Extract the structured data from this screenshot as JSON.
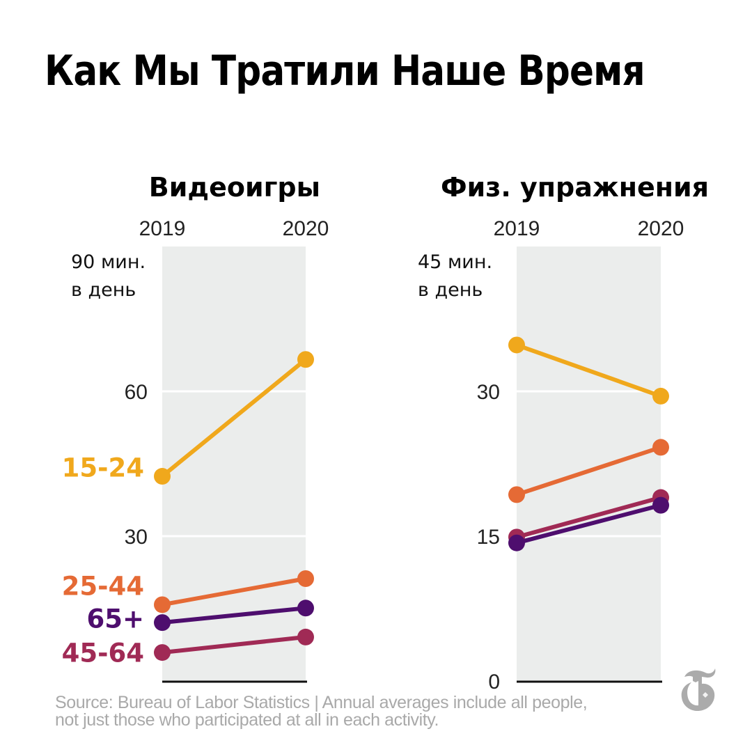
{
  "title": "Как Мы Тратили Наше Время",
  "footer": {
    "line1": "Source: Bureau of Labor Statistics | Annual averages include all people,",
    "line2": "not just those who participated at all in each activity."
  },
  "logo_icon": "nyt-t-logo",
  "colors": {
    "15-24": "#F0A81C",
    "25-44": "#E56A35",
    "45-64": "#A02A55",
    "65+": "#4E0E6E",
    "panel_bg": "#EBEDEC",
    "gridline": "#ffffff",
    "baseline": "#111111"
  },
  "chart_data": [
    {
      "type": "line",
      "title": "Видеоигры",
      "unit_label": [
        "90 мин.",
        "в день"
      ],
      "x": [
        "2019",
        "2020"
      ],
      "ylim": [
        0,
        90
      ],
      "yticks": [
        0,
        30,
        60,
        90
      ],
      "ytick_labels": [
        "",
        "30",
        "60",
        ""
      ],
      "grid": true,
      "series_labels_visible": true,
      "series": [
        {
          "name": "15-24",
          "values": [
            42.4,
            66.6
          ]
        },
        {
          "name": "25-44",
          "values": [
            15.8,
            21.2
          ]
        },
        {
          "name": "45-64",
          "values": [
            5.9,
            9.1
          ]
        },
        {
          "name": "65+",
          "values": [
            12.1,
            15.1
          ]
        }
      ],
      "label_values": {
        "15-24": 42.3,
        "25-44": 17.8,
        "65+": 11.0,
        "45-64": 4.0
      }
    },
    {
      "type": "line",
      "title": "Физ. упражнения",
      "unit_label": [
        "45 мин.",
        "в день"
      ],
      "x": [
        "2019",
        "2020"
      ],
      "ylim": [
        0,
        45
      ],
      "yticks": [
        0,
        15,
        30,
        45
      ],
      "ytick_labels": [
        "0",
        "15",
        "30",
        ""
      ],
      "grid": true,
      "series_labels_visible": false,
      "series": [
        {
          "name": "15-24",
          "values": [
            34.8,
            29.5
          ]
        },
        {
          "name": "25-44",
          "values": [
            19.3,
            24.2
          ]
        },
        {
          "name": "45-64",
          "values": [
            14.9,
            19.0
          ]
        },
        {
          "name": "65+",
          "values": [
            14.3,
            18.2
          ]
        }
      ]
    }
  ]
}
